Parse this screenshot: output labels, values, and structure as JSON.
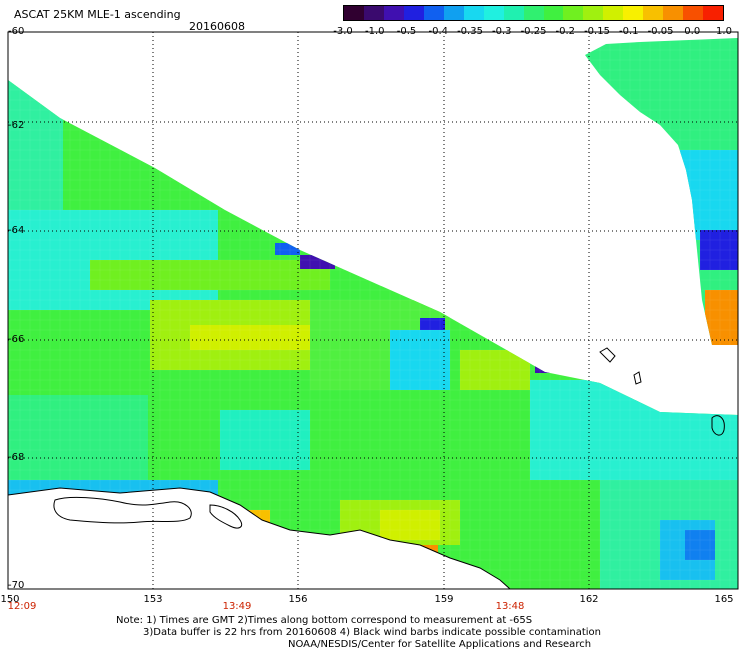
{
  "header": {
    "title": "ASCAT 25KM MLE-1 ascending",
    "date": "20160608"
  },
  "colorbar": {
    "colors": [
      "#300030",
      "#3a0a6e",
      "#4010b0",
      "#2020e0",
      "#1060f0",
      "#10a0f0",
      "#18d8f0",
      "#20f0e0",
      "#20f0b0",
      "#30f070",
      "#40f040",
      "#70f020",
      "#a0f010",
      "#d0f000",
      "#f8f000",
      "#f8c000",
      "#f89000",
      "#f85000",
      "#f82000"
    ],
    "labels": [
      "-3.0",
      "-1.0",
      "-0.5",
      "-0.4",
      "-0.35",
      "-0.3",
      "-0.25",
      "-0.2",
      "-0.15",
      "-0.1",
      "-0.05",
      "0.0",
      "1.0"
    ]
  },
  "axes": {
    "lat_labels": [
      "-60",
      "-62",
      "-64",
      "-66",
      "-68",
      "-70"
    ],
    "lon_labels": [
      "150",
      "153",
      "156",
      "159",
      "162",
      "165"
    ],
    "time_labels": [
      "12:09",
      "13:49",
      "13:48"
    ]
  },
  "notes": [
    "Note: 1) Times are GMT 2)Times along bottom correspond to measurement at -65S",
    "3)Data buffer is 22 hrs from 20160608 4) Black wind barbs indicate possible contamination",
    "NOAA/NESDIS/Center for Satellite Applications and Research"
  ]
}
